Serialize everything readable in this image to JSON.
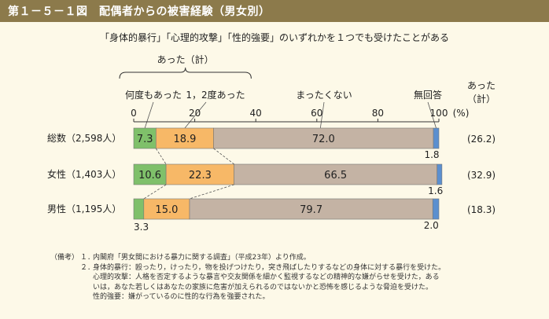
{
  "header": {
    "title": "第１－５－１図　配偶者からの被害経験（男女別）",
    "subtitle": "「身体的暴行」「心理的攻撃」「性的強要」のいずれかを１つでも受けたことがある"
  },
  "chart_data": {
    "type": "bar",
    "orientation": "horizontal",
    "stacked": true,
    "categories": [
      "総数（2,598人）",
      "女性（1,403人）",
      "男性（1,195人）"
    ],
    "series": [
      {
        "name": "何度もあった",
        "color": "#7fc06a",
        "values": [
          7.3,
          10.6,
          3.3
        ]
      },
      {
        "name": "1，2度あった",
        "color": "#f7b867",
        "values": [
          18.9,
          22.3,
          15.0
        ]
      },
      {
        "name": "まったくない",
        "color": "#c4b3a4",
        "values": [
          72.0,
          66.5,
          79.7
        ]
      },
      {
        "name": "無回答",
        "color": "#5b8fcf",
        "values": [
          1.8,
          1.6,
          2.0
        ]
      }
    ],
    "totals": {
      "header": "あった\n（計）",
      "header_line1": "あった",
      "header_line2": "（計）",
      "values": [
        "(26.2)",
        "(32.9)",
        "(18.3)"
      ]
    },
    "group_label": "あった（計）",
    "xlim": [
      0,
      100
    ],
    "xticks": [
      0,
      20,
      40,
      60,
      80,
      100
    ],
    "xtick_labels": [
      "0",
      "20",
      "40",
      "60",
      "80",
      "100"
    ],
    "x_unit": "(%)",
    "grid": false,
    "legend": "labels above bars"
  },
  "notes": {
    "label": "（備考）",
    "items": [
      {
        "num": "１．",
        "text": "内閣府「男女間における暴力に関する調査」（平成23年）より作成。"
      },
      {
        "num": "２．",
        "text": "身体的暴行：殴ったり，けったり，物を投げつけたり，突き飛ばしたりするなどの身体に対する暴行を受けた。"
      }
    ],
    "line3": "心理的攻撃：人格を否定するような暴言や交友関係を細かく監視するなどの精神的な嫌がらせを受けた，ある",
    "line4": "いは，あなた若しくはあなたの家族に危害が加えられるのではないかと恐怖を感じるような脅迫を受けた。",
    "line5": "性的強要：嫌がっているのに性的な行為を強要された。"
  }
}
